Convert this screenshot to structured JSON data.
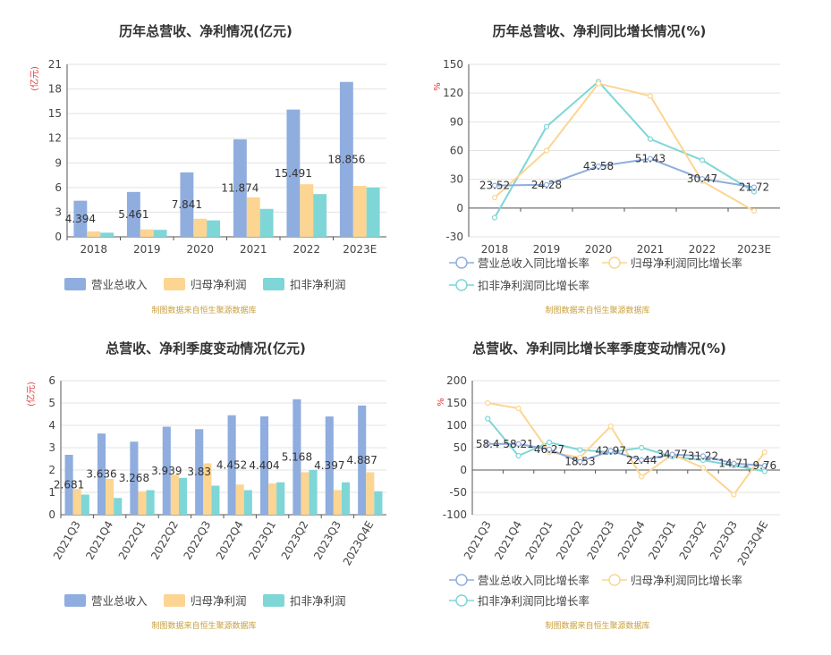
{
  "colors": {
    "revenue": "#8fadde",
    "parent_profit": "#fcd592",
    "deducted_profit": "#7fd6d6",
    "grid": "#e3e3e3",
    "axis": "#555555"
  },
  "source_text": "制图数据来自恒生聚源数据库",
  "chart_data": [
    {
      "type": "bar",
      "title": "历年总营收、净利情况(亿元)",
      "ylabel": "(亿元)",
      "categories": [
        "2018",
        "2019",
        "2020",
        "2021",
        "2022",
        "2023E"
      ],
      "yticks": [
        0,
        3,
        6,
        9,
        12,
        15,
        18,
        21
      ],
      "ylim": [
        0,
        21
      ],
      "series": [
        {
          "name": "营业总收入",
          "values": [
            4.394,
            5.461,
            7.841,
            11.874,
            15.491,
            18.856
          ]
        },
        {
          "name": "归母净利润",
          "values": [
            0.65,
            0.9,
            2.2,
            4.8,
            6.4,
            6.2
          ]
        },
        {
          "name": "扣非净利润",
          "values": [
            0.5,
            0.85,
            2.0,
            3.4,
            5.2,
            6.0
          ]
        }
      ],
      "data_labels": [
        "4.394",
        "5.461",
        "7.841",
        "11.874",
        "15.491",
        "18.856"
      ],
      "legend": "bottom"
    },
    {
      "type": "line",
      "title": "历年总营收、净利同比增长情况(%)",
      "ylabel": "%",
      "categories": [
        "2018",
        "2019",
        "2020",
        "2021",
        "2022",
        "2023E"
      ],
      "yticks": [
        -30,
        0,
        30,
        60,
        90,
        120,
        150
      ],
      "ylim": [
        -30,
        150
      ],
      "series": [
        {
          "name": "营业总收入同比增长率",
          "values": [
            23.52,
            24.28,
            43.58,
            51.43,
            30.47,
            21.72
          ]
        },
        {
          "name": "归母净利润同比增长率",
          "values": [
            11,
            60,
            130,
            117,
            28,
            -3
          ]
        },
        {
          "name": "扣非净利润同比增长率",
          "values": [
            -10,
            85,
            132,
            72,
            50,
            17
          ]
        }
      ],
      "data_labels": [
        "23.52",
        "24.28",
        "43.58",
        "51.43",
        "30.47",
        "21.72"
      ],
      "legend": "bottom"
    },
    {
      "type": "bar",
      "title": "总营收、净利季度变动情况(亿元)",
      "ylabel": "(亿元)",
      "categories": [
        "2021Q3",
        "2021Q4",
        "2022Q1",
        "2022Q2",
        "2022Q3",
        "2022Q4",
        "2023Q1",
        "2023Q2",
        "2023Q3",
        "2023Q4E"
      ],
      "yticks": [
        0,
        1,
        2,
        3,
        4,
        5,
        6
      ],
      "ylim": [
        0,
        6
      ],
      "series": [
        {
          "name": "营业总收入",
          "values": [
            2.681,
            3.636,
            3.268,
            3.939,
            3.83,
            4.452,
            4.404,
            5.168,
            4.397,
            4.887
          ]
        },
        {
          "name": "归母净利润",
          "values": [
            1.15,
            1.6,
            1.05,
            1.8,
            2.3,
            1.35,
            1.4,
            1.9,
            1.1,
            1.9
          ]
        },
        {
          "name": "扣非净利润",
          "values": [
            0.9,
            0.75,
            1.1,
            1.65,
            1.3,
            1.1,
            1.45,
            2.0,
            1.45,
            1.05
          ]
        }
      ],
      "data_labels": [
        "2.681",
        "3.636",
        "3.268",
        "3.939",
        "3.83",
        "4.452",
        "4.404",
        "5.168",
        "4.397",
        "4.887"
      ],
      "legend": "bottom"
    },
    {
      "type": "line",
      "title": "总营收、净利同比增长率季度变动情况(%)",
      "ylabel": "%",
      "categories": [
        "2021Q3",
        "2021Q4",
        "2022Q1",
        "2022Q2",
        "2022Q3",
        "2022Q4",
        "2023Q1",
        "2023Q2",
        "2023Q3",
        "2023Q4E"
      ],
      "yticks": [
        -100,
        -50,
        0,
        50,
        100,
        150,
        200
      ],
      "ylim": [
        -100,
        200
      ],
      "series": [
        {
          "name": "营业总收入同比增长率",
          "values": [
            58.4,
            58.21,
            46.27,
            18.53,
            42.97,
            22.44,
            34.77,
            31.22,
            14.71,
            9.76
          ]
        },
        {
          "name": "归母净利润同比增长率",
          "values": [
            150,
            138,
            40,
            28,
            98,
            -15,
            35,
            5,
            -55,
            40
          ]
        },
        {
          "name": "扣非净利润同比增长率",
          "values": [
            115,
            32,
            62,
            45,
            40,
            50,
            30,
            22,
            10,
            -3
          ]
        }
      ],
      "data_labels": [
        "58.4",
        "58.21",
        "46.27",
        "18.53",
        "42.97",
        "22.44",
        "34.77",
        "31.22",
        "14.71",
        "9.76"
      ],
      "legend": "bottom"
    }
  ]
}
